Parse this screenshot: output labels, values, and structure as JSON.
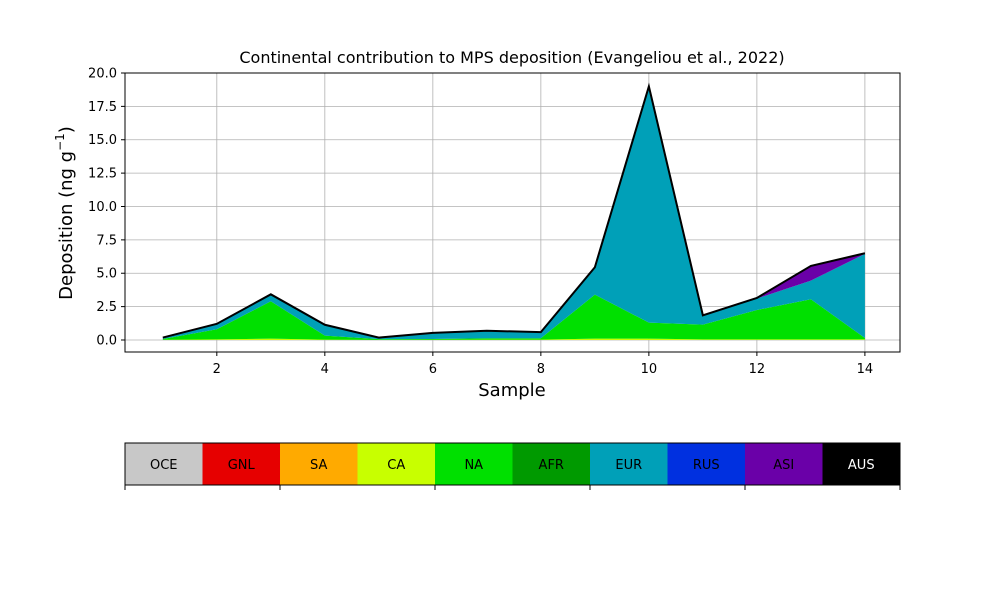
{
  "chart_data": {
    "type": "area",
    "stacked": true,
    "title": "Continental contribution to MPS deposition (Evangeliou et al., 2022)",
    "xlabel": "Sample",
    "ylabel_main": "Deposition (ng g",
    "ylabel_sup": "−1",
    "ylabel_close": ")",
    "xlim": [
      0.3,
      14.65
    ],
    "ylim": [
      -0.9,
      20.0
    ],
    "xticks": [
      2,
      4,
      6,
      8,
      10,
      12,
      14
    ],
    "yticks": [
      0.0,
      2.5,
      5.0,
      7.5,
      10.0,
      12.5,
      15.0,
      17.5,
      20.0
    ],
    "ytick_labels": [
      "0.0",
      "2.5",
      "5.0",
      "7.5",
      "10.0",
      "12.5",
      "15.0",
      "17.5",
      "20.0"
    ],
    "grid": true,
    "x": [
      1,
      2,
      3,
      4,
      5,
      6,
      7,
      8,
      9,
      10,
      11,
      12,
      13,
      14
    ],
    "series": [
      {
        "name": "OCE",
        "color": "#c8c8c8",
        "values": [
          0,
          0,
          0,
          0,
          0,
          0,
          0,
          0,
          0,
          0,
          0,
          0,
          0,
          0
        ]
      },
      {
        "name": "GNL",
        "color": "#e60000",
        "values": [
          0,
          0,
          0,
          0,
          0,
          0,
          0,
          0,
          0,
          0,
          0,
          0,
          0,
          0
        ]
      },
      {
        "name": "SA",
        "color": "#ffaa00",
        "values": [
          0,
          0,
          0,
          0,
          0,
          0,
          0,
          0,
          0,
          0,
          0,
          0,
          0,
          0
        ]
      },
      {
        "name": "CA",
        "color": "#c8ff00",
        "values": [
          0.02,
          0.05,
          0.1,
          0.03,
          0.01,
          0.02,
          0.03,
          0.03,
          0.1,
          0.1,
          0.05,
          0.05,
          0.05,
          0.05
        ]
      },
      {
        "name": "NA",
        "color": "#00e000",
        "values": [
          0.05,
          0.75,
          2.8,
          0.3,
          0.05,
          0.05,
          0.1,
          0.1,
          3.3,
          1.2,
          1.1,
          2.2,
          3.0,
          0.1
        ]
      },
      {
        "name": "AFR",
        "color": "#009a00",
        "values": [
          0,
          0,
          0,
          0,
          0,
          0,
          0,
          0,
          0,
          0,
          0,
          0,
          0,
          0
        ]
      },
      {
        "name": "EUR",
        "color": "#00a0b8",
        "values": [
          0.1,
          0.4,
          0.5,
          0.8,
          0.12,
          0.45,
          0.55,
          0.45,
          2.0,
          17.5,
          0.65,
          0.85,
          1.4,
          6.3
        ]
      },
      {
        "name": "RUS",
        "color": "#0030e0",
        "values": [
          0,
          0,
          0,
          0,
          0,
          0,
          0,
          0,
          0,
          0,
          0,
          0,
          0,
          0
        ]
      },
      {
        "name": "ASI",
        "color": "#6a00a8",
        "values": [
          0.01,
          0.01,
          0.02,
          0.01,
          0,
          0.01,
          0.01,
          0.01,
          0.05,
          0.2,
          0.05,
          0.05,
          1.1,
          0.05
        ]
      },
      {
        "name": "AUS",
        "color": "#000000",
        "values": [
          0,
          0,
          0,
          0,
          0,
          0,
          0,
          0,
          0,
          0,
          0,
          0,
          0,
          0
        ]
      }
    ],
    "legend": {
      "placement": "below",
      "items": [
        {
          "label": "OCE",
          "color": "#c8c8c8",
          "text_color": "#000000"
        },
        {
          "label": "GNL",
          "color": "#e60000",
          "text_color": "#000000"
        },
        {
          "label": "SA",
          "color": "#ffaa00",
          "text_color": "#000000"
        },
        {
          "label": "CA",
          "color": "#c8ff00",
          "text_color": "#000000"
        },
        {
          "label": "NA",
          "color": "#00e000",
          "text_color": "#000000"
        },
        {
          "label": "AFR",
          "color": "#009a00",
          "text_color": "#000000"
        },
        {
          "label": "EUR",
          "color": "#00a0b8",
          "text_color": "#000000"
        },
        {
          "label": "RUS",
          "color": "#0030e0",
          "text_color": "#000000"
        },
        {
          "label": "ASI",
          "color": "#6a00a8",
          "text_color": "#000000"
        },
        {
          "label": "AUS",
          "color": "#000000",
          "text_color": "#ffffff"
        }
      ]
    }
  }
}
